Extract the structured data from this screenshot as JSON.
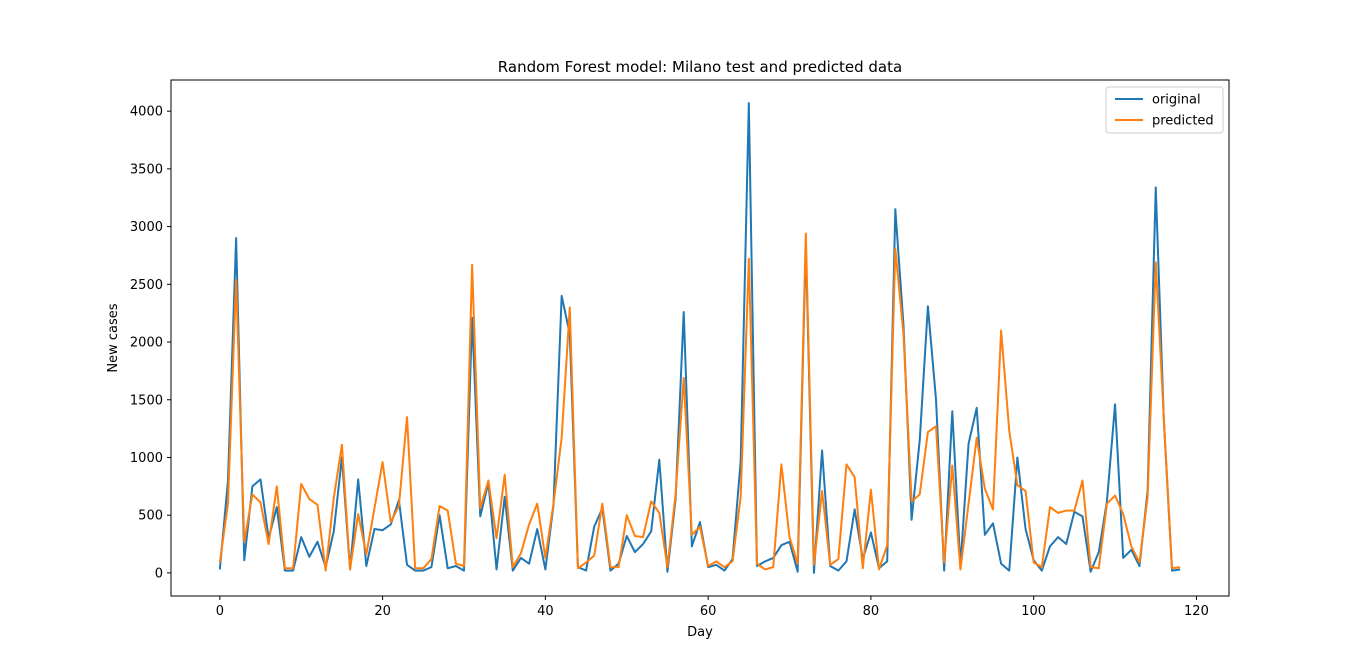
{
  "chart_data": {
    "type": "line",
    "title": "Random Forest model: Milano test and predicted data",
    "xlabel": "Day",
    "ylabel": "New cases",
    "xlim": [
      -6,
      124
    ],
    "ylim": [
      -200,
      4270
    ],
    "xticks": [
      0,
      20,
      40,
      60,
      80,
      100,
      120
    ],
    "yticks": [
      0,
      500,
      1000,
      1500,
      2000,
      2500,
      3000,
      3500,
      4000
    ],
    "grid": false,
    "legend_position": "top-right",
    "series": [
      {
        "name": "original",
        "color": "#1f77b4",
        "values": [
          30,
          800,
          2900,
          110,
          750,
          810,
          300,
          570,
          20,
          20,
          310,
          140,
          270,
          50,
          360,
          1000,
          30,
          810,
          60,
          380,
          370,
          420,
          630,
          70,
          20,
          20,
          50,
          500,
          40,
          60,
          20,
          2210,
          490,
          780,
          30,
          660,
          20,
          130,
          80,
          380,
          30,
          590,
          2400,
          2070,
          50,
          20,
          400,
          560,
          20,
          80,
          320,
          180,
          250,
          360,
          980,
          10,
          640,
          2260,
          230,
          440,
          50,
          70,
          20,
          120,
          970,
          4070,
          60,
          100,
          130,
          240,
          270,
          10,
          2850,
          0,
          1060,
          60,
          20,
          100,
          550,
          120,
          350,
          40,
          100,
          3150,
          2150,
          460,
          1150,
          2310,
          1500,
          20,
          1400,
          60,
          1120,
          1430,
          330,
          430,
          80,
          20,
          1000,
          380,
          110,
          20,
          230,
          310,
          250,
          530,
          490,
          10,
          180,
          620,
          1460,
          130,
          200,
          60,
          710,
          3340,
          1310,
          20,
          30
        ]
      },
      {
        "name": "predicted",
        "color": "#ff7f0e",
        "values": [
          90,
          600,
          2540,
          270,
          680,
          610,
          250,
          750,
          40,
          40,
          770,
          640,
          590,
          20,
          650,
          1110,
          30,
          510,
          160,
          560,
          960,
          440,
          580,
          1350,
          40,
          40,
          120,
          580,
          540,
          80,
          60,
          2670,
          560,
          800,
          300,
          850,
          50,
          170,
          420,
          600,
          130,
          600,
          1170,
          2300,
          40,
          90,
          150,
          600,
          50,
          50,
          500,
          320,
          310,
          620,
          520,
          50,
          680,
          1690,
          330,
          400,
          60,
          100,
          50,
          100,
          660,
          2720,
          80,
          30,
          50,
          940,
          310,
          80,
          2940,
          70,
          710,
          70,
          120,
          940,
          830,
          40,
          720,
          30,
          240,
          2810,
          2070,
          620,
          680,
          1220,
          1270,
          90,
          930,
          30,
          600,
          1170,
          730,
          550,
          2100,
          1230,
          760,
          710,
          90,
          50,
          570,
          520,
          540,
          540,
          800,
          50,
          40,
          600,
          670,
          510,
          230,
          90,
          660,
          2690,
          1330,
          40,
          50
        ]
      }
    ]
  }
}
